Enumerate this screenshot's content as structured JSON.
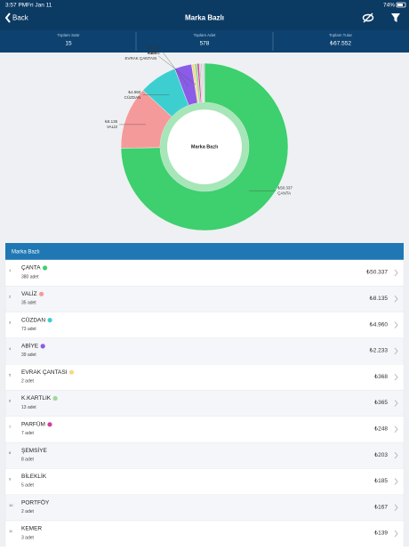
{
  "status_bar": {
    "time": "3:57 PM",
    "date": "Fri Jan 11",
    "battery": "74%"
  },
  "header": {
    "back": "Back",
    "title": "Marka Bazlı"
  },
  "summary": [
    {
      "label": "Toplam Satır",
      "value": "15"
    },
    {
      "label": "Toplam Adet",
      "value": "578"
    },
    {
      "label": "Toplam Tutar",
      "value": "₺67.552"
    }
  ],
  "chart_data": {
    "type": "donut",
    "center_label": "Marka Bazlı",
    "categories": [
      "ÇANTA",
      "VALİZ",
      "CÜZDAN",
      "ABİYE",
      "EVRAK ÇANTASI",
      "K.KARTLIK",
      "PARFÜM",
      "ŞEMSİYE",
      "BİLEKLİK",
      "PORTFÖY",
      "KEMER"
    ],
    "values": [
      50337,
      8135,
      4960,
      2233,
      368,
      365,
      248,
      203,
      185,
      167,
      139
    ],
    "value_labels": [
      "₺50.337",
      "₺8.135",
      "₺4.960",
      "₺2.233",
      "₺368",
      "₺365",
      "₺248",
      "₺203",
      "₺185",
      "₺167",
      "₺139"
    ],
    "colors": [
      "#3ecf6e",
      "#f59a9a",
      "#3dcfd0",
      "#8a5ce8",
      "#f5d88a",
      "#9ed99a",
      "#d63ca0",
      null,
      null,
      null,
      null
    ]
  },
  "list": {
    "title": "Marka Bazlı",
    "indices": [
      "1",
      "2",
      "3",
      "4",
      "5",
      "6",
      "7",
      "8",
      "9",
      "10",
      "11"
    ],
    "counts": [
      "380 adet",
      "35 adet",
      "73 adet",
      "39 adet",
      "2 adet",
      "13 adet",
      "7 adet",
      "8 adet",
      "5 adet",
      "2 adet",
      "3 adet"
    ]
  }
}
